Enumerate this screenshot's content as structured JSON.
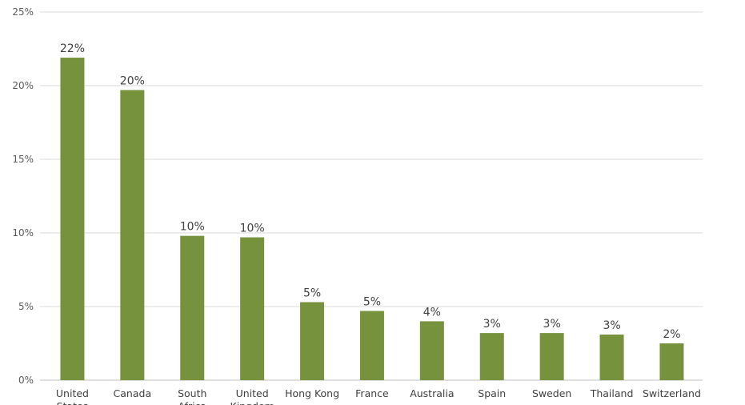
{
  "chart_data": {
    "type": "bar",
    "categories": [
      "United States",
      "Canada",
      "South Africa",
      "United Kingdom",
      "Hong Kong",
      "France",
      "Australia",
      "Spain",
      "Sweden",
      "Thailand",
      "Switzerland"
    ],
    "category_lines": [
      [
        "United",
        "States"
      ],
      [
        "Canada"
      ],
      [
        "South",
        "Africa"
      ],
      [
        "United",
        "Kingdom"
      ],
      [
        "Hong Kong"
      ],
      [
        "France"
      ],
      [
        "Australia"
      ],
      [
        "Spain"
      ],
      [
        "Sweden"
      ],
      [
        "Thailand"
      ],
      [
        "Switzerland"
      ]
    ],
    "values": [
      21.9,
      19.7,
      9.8,
      9.7,
      5.3,
      4.7,
      4.0,
      3.2,
      3.2,
      3.1,
      2.5
    ],
    "data_labels": [
      "22%",
      "20%",
      "10%",
      "10%",
      "5%",
      "5%",
      "4%",
      "3%",
      "3%",
      "3%",
      "2%"
    ],
    "y_ticks": [
      0,
      5,
      10,
      15,
      20,
      25
    ],
    "y_tick_labels": [
      "0%",
      "5%",
      "10%",
      "15%",
      "20%",
      "25%"
    ],
    "ylim": [
      0,
      25
    ],
    "grid": true,
    "legend": "none",
    "title": "",
    "xlabel": "",
    "ylabel": "",
    "colors": {
      "bar": "#76923c",
      "grid": "#d9d9d9",
      "text": "#404040"
    }
  }
}
